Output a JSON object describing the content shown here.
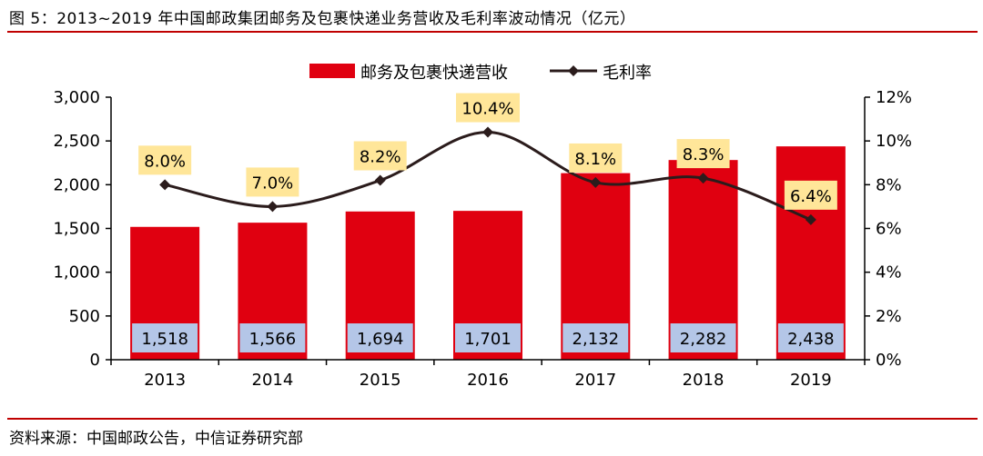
{
  "figure": {
    "title": "图 5：2013~2019 年中国邮政集团邮务及包裹快递业务营收及毛利率波动情况（亿元）",
    "source": "资料来源：中国邮政公告，中信证券研究部"
  },
  "colors": {
    "bar": "#e00010",
    "line": "#2b1c1c",
    "bar_label_bg": "#b4c6e7",
    "line_label_bg": "#ffe699",
    "rule": "#c00000"
  },
  "chart_data": {
    "type": "bar",
    "categories": [
      "2013",
      "2014",
      "2015",
      "2016",
      "2017",
      "2018",
      "2019"
    ],
    "series": [
      {
        "name": "邮务及包裹快递营收",
        "type": "bar",
        "axis": "left",
        "values": [
          1518,
          1566,
          1694,
          1701,
          2132,
          2282,
          2438
        ],
        "labels": [
          "1,518",
          "1,566",
          "1,694",
          "1,701",
          "2,132",
          "2,282",
          "2,438"
        ]
      },
      {
        "name": "毛利率",
        "type": "line",
        "axis": "right",
        "values": [
          8.0,
          7.0,
          8.2,
          10.4,
          8.1,
          8.3,
          6.4
        ],
        "labels": [
          "8.0%",
          "7.0%",
          "8.2%",
          "10.4%",
          "8.1%",
          "8.3%",
          "6.4%"
        ]
      }
    ],
    "y_left": {
      "min": 0,
      "max": 3000,
      "ticks": [
        0,
        500,
        1000,
        1500,
        2000,
        2500,
        3000
      ],
      "tick_labels": [
        "0",
        "500",
        "1,000",
        "1,500",
        "2,000",
        "2,500",
        "3,000"
      ]
    },
    "y_right": {
      "min": 0,
      "max": 12,
      "ticks": [
        0,
        2,
        4,
        6,
        8,
        10,
        12
      ],
      "tick_labels": [
        "0%",
        "2%",
        "4%",
        "6%",
        "8%",
        "10%",
        "12%"
      ]
    },
    "legend": {
      "position": "top-center"
    },
    "grid": false
  }
}
